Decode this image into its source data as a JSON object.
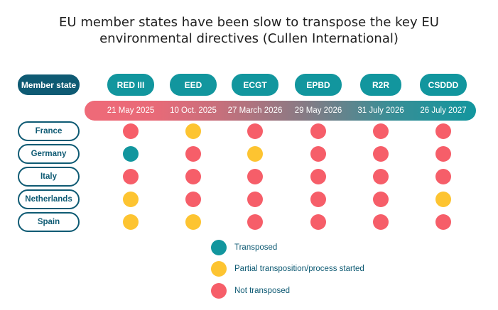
{
  "title": {
    "line1": "EU member states have been slow to transpose the key EU",
    "line2": "environmental directives (Cullen International)"
  },
  "member_header": "Member state",
  "directives": [
    {
      "name": "RED III",
      "date": "21 May 2025"
    },
    {
      "name": "EED",
      "date": "10 Oct. 2025"
    },
    {
      "name": "ECGT",
      "date": "27 March 2026"
    },
    {
      "name": "EPBD",
      "date": "29 May 2026"
    },
    {
      "name": "R2R",
      "date": "31 July 2026"
    },
    {
      "name": "CSDDD",
      "date": "26 July 2027"
    }
  ],
  "countries": [
    {
      "name": "France",
      "status": [
        "not",
        "partial",
        "not",
        "not",
        "not",
        "not"
      ]
    },
    {
      "name": "Germany",
      "status": [
        "transposed",
        "not",
        "partial",
        "not",
        "not",
        "not"
      ]
    },
    {
      "name": "Italy",
      "status": [
        "not",
        "not",
        "not",
        "not",
        "not",
        "not"
      ]
    },
    {
      "name": "Netherlands",
      "status": [
        "partial",
        "not",
        "not",
        "not",
        "not",
        "partial"
      ]
    },
    {
      "name": "Spain",
      "status": [
        "partial",
        "partial",
        "not",
        "not",
        "not",
        "not"
      ]
    }
  ],
  "legend": [
    {
      "key": "transposed",
      "label": "Transposed"
    },
    {
      "key": "partial",
      "label": "Partial transposition/process started"
    },
    {
      "key": "not",
      "label": "Not transposed"
    }
  ],
  "colors": {
    "transposed": "#12969e",
    "partial": "#fdc431",
    "not": "#f65e69",
    "navy": "#0e5a73"
  }
}
